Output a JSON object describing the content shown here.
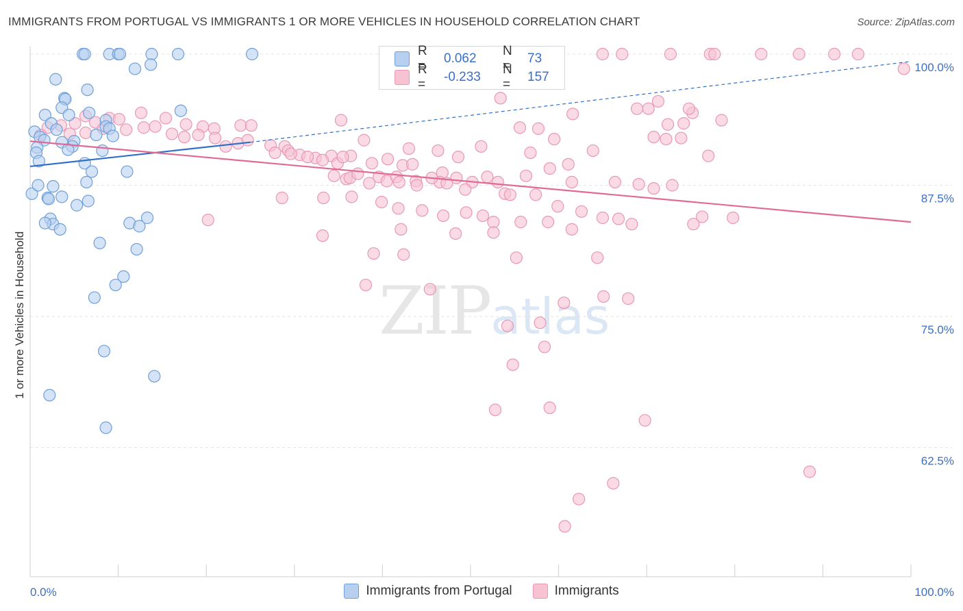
{
  "header": {
    "title": "IMMIGRANTS FROM PORTUGAL VS IMMIGRANTS 1 OR MORE VEHICLES IN HOUSEHOLD CORRELATION CHART",
    "source": "Source: ZipAtlas.com"
  },
  "watermark": {
    "zip": "ZIP",
    "atlas": "atlas"
  },
  "legend": {
    "r_label": "R =",
    "n_label": "N =",
    "rows": [
      {
        "r": "0.062",
        "n": "73"
      },
      {
        "r": "-0.233",
        "n": "157"
      }
    ]
  },
  "bottom_legend": [
    "Immigrants from Portugal",
    "Immigrants"
  ],
  "colors": {
    "blue_fill": "#b8d0f0",
    "blue_stroke": "#6f9fd8",
    "blue_line": "#2f6fc9",
    "pink_fill": "#f7c3d3",
    "pink_stroke": "#e898b3",
    "pink_line": "#e06a95",
    "axis_text_blue": "#3b6fc4",
    "grid": "#e3e3e3"
  },
  "chart_data": {
    "type": "scatter",
    "xlabel": "",
    "ylabel": "1 or more Vehicles in Household",
    "x_tick_labels": [
      "0.0%",
      "100.0%"
    ],
    "y_tick_labels": [
      "100.0%",
      "87.5%",
      "75.0%",
      "62.5%"
    ],
    "y_ticks": [
      100,
      87.5,
      75,
      62.5
    ],
    "xlim": [
      0,
      100
    ],
    "ylim": [
      50.5,
      101
    ],
    "grid": "horizontal dashed",
    "legend_position": "top-center",
    "series": [
      {
        "name": "Immigrants from Portugal",
        "r": 0.062,
        "n": 73,
        "trend": {
          "x0": 0,
          "y0": 89.3,
          "x1": 25,
          "y1": 91.6,
          "extend_to": 100,
          "extend_y": 99.3
        },
        "points": [
          [
            6,
            100
          ],
          [
            6.2,
            100
          ],
          [
            9,
            100
          ],
          [
            10,
            100
          ],
          [
            10.2,
            100
          ],
          [
            13.8,
            100
          ],
          [
            16.8,
            100
          ],
          [
            25.2,
            100
          ],
          [
            11.9,
            98.6
          ],
          [
            13.7,
            99
          ],
          [
            2.9,
            97.6
          ],
          [
            6.5,
            96.6
          ],
          [
            3.9,
            95.8
          ],
          [
            4,
            95.7
          ],
          [
            3.6,
            94.9
          ],
          [
            17.1,
            94.6
          ],
          [
            1.7,
            94.2
          ],
          [
            4.4,
            94.2
          ],
          [
            6.7,
            94.4
          ],
          [
            8.6,
            93.7
          ],
          [
            2.4,
            93.4
          ],
          [
            0.5,
            92.6
          ],
          [
            1.1,
            92.1
          ],
          [
            3,
            92.8
          ],
          [
            8.6,
            93.1
          ],
          [
            9,
            92.9
          ],
          [
            7.5,
            92.3
          ],
          [
            9.4,
            92.2
          ],
          [
            1.6,
            91.8
          ],
          [
            3.6,
            91.6
          ],
          [
            5,
            91.7
          ],
          [
            4.8,
            91.2
          ],
          [
            0.8,
            91.1
          ],
          [
            4.3,
            90.9
          ],
          [
            0.7,
            90.6
          ],
          [
            8.2,
            90.8
          ],
          [
            1,
            89.8
          ],
          [
            6.2,
            89.6
          ],
          [
            11,
            88.8
          ],
          [
            7,
            88.8
          ],
          [
            6.4,
            87.8
          ],
          [
            0.2,
            86.7
          ],
          [
            0.9,
            87.5
          ],
          [
            2.6,
            87.4
          ],
          [
            2,
            86.3
          ],
          [
            3.6,
            86.4
          ],
          [
            2.1,
            86.2
          ],
          [
            6.6,
            86
          ],
          [
            5.3,
            85.6
          ],
          [
            2.3,
            84.3
          ],
          [
            2.6,
            83.8
          ],
          [
            1.7,
            83.9
          ],
          [
            3.4,
            83.3
          ],
          [
            13.3,
            84.4
          ],
          [
            11.3,
            83.9
          ],
          [
            12.4,
            83.6
          ],
          [
            7.9,
            82
          ],
          [
            12.1,
            81.4
          ],
          [
            10.6,
            78.8
          ],
          [
            9.7,
            78
          ],
          [
            7.3,
            76.8
          ],
          [
            8.4,
            71.7
          ],
          [
            14.1,
            69.3
          ],
          [
            2.2,
            67.5
          ],
          [
            8.6,
            64.4
          ]
        ]
      },
      {
        "name": "Immigrants",
        "r": -0.233,
        "n": 157,
        "trend": {
          "x0": 0,
          "y0": 91.7,
          "x1": 100,
          "y1": 84
        },
        "points": [
          [
            65,
            100
          ],
          [
            67.2,
            100
          ],
          [
            72.7,
            100
          ],
          [
            77.2,
            100
          ],
          [
            77.7,
            100
          ],
          [
            83,
            100
          ],
          [
            87.3,
            100
          ],
          [
            91.3,
            100
          ],
          [
            94,
            100
          ],
          [
            99.2,
            98.6
          ],
          [
            53.4,
            95.8
          ],
          [
            71.3,
            95.5
          ],
          [
            61.6,
            94.3
          ],
          [
            70.2,
            94.8
          ],
          [
            68.9,
            94.8
          ],
          [
            75.2,
            94.4
          ],
          [
            74.8,
            94.8
          ],
          [
            78.5,
            93.7
          ],
          [
            74.2,
            93.4
          ],
          [
            72.4,
            93.3
          ],
          [
            55.6,
            93
          ],
          [
            57.7,
            92.9
          ],
          [
            70.8,
            92.1
          ],
          [
            73.9,
            92
          ],
          [
            59.5,
            91.9
          ],
          [
            72.2,
            91.9
          ],
          [
            63.9,
            90.8
          ],
          [
            77,
            90.3
          ],
          [
            56.8,
            90.6
          ],
          [
            59,
            89.1
          ],
          [
            61.1,
            89.5
          ],
          [
            35.3,
            93.7
          ],
          [
            37.9,
            91.8
          ],
          [
            43,
            91
          ],
          [
            46.3,
            90.8
          ],
          [
            48.6,
            90.2
          ],
          [
            51.2,
            91.2
          ],
          [
            2,
            93
          ],
          [
            3.5,
            93.2
          ],
          [
            5.1,
            93.4
          ],
          [
            6.3,
            94.1
          ],
          [
            7.4,
            93.5
          ],
          [
            9,
            93.9
          ],
          [
            10.1,
            93.8
          ],
          [
            12.6,
            94.4
          ],
          [
            15.4,
            93.9
          ],
          [
            17.7,
            93.3
          ],
          [
            19.6,
            93.1
          ],
          [
            20.9,
            92.9
          ],
          [
            23.9,
            93.2
          ],
          [
            25.1,
            93.2
          ],
          [
            1.2,
            92.3
          ],
          [
            4.5,
            92.4
          ],
          [
            6.3,
            92.5
          ],
          [
            8.3,
            92.9
          ],
          [
            10.9,
            92.8
          ],
          [
            12.9,
            93
          ],
          [
            14.2,
            93.1
          ],
          [
            16.1,
            92.4
          ],
          [
            17.5,
            92.1
          ],
          [
            19.1,
            92.3
          ],
          [
            21,
            92
          ],
          [
            22.2,
            91.2
          ],
          [
            23.6,
            91.5
          ],
          [
            24.7,
            91.8
          ],
          [
            27.3,
            91.3
          ],
          [
            28.9,
            91.2
          ],
          [
            29.3,
            90.8
          ],
          [
            30.6,
            90.4
          ],
          [
            32.4,
            90.1
          ],
          [
            34.2,
            90.3
          ],
          [
            36.4,
            90.3
          ],
          [
            38.8,
            89.6
          ],
          [
            40.6,
            90
          ],
          [
            42.3,
            89.4
          ],
          [
            43.4,
            89.5
          ],
          [
            46.8,
            88.7
          ],
          [
            27.8,
            90.6
          ],
          [
            29.6,
            90.5
          ],
          [
            31.5,
            90.2
          ],
          [
            33.2,
            89.9
          ],
          [
            34.9,
            89.6
          ],
          [
            35.5,
            90.2
          ],
          [
            34.5,
            88.4
          ],
          [
            35.9,
            88.1
          ],
          [
            36.3,
            88.2
          ],
          [
            39.6,
            88.3
          ],
          [
            40.5,
            87.9
          ],
          [
            41.6,
            88.3
          ],
          [
            43.8,
            87.9
          ],
          [
            46.5,
            87.8
          ],
          [
            48.4,
            88.2
          ],
          [
            50.2,
            87.8
          ],
          [
            51.9,
            88.3
          ],
          [
            53.1,
            87.8
          ],
          [
            56.3,
            88.4
          ],
          [
            61.5,
            87.8
          ],
          [
            66.4,
            87.8
          ],
          [
            69.1,
            87.6
          ],
          [
            70.8,
            87.2
          ],
          [
            72.9,
            87.5
          ],
          [
            37.2,
            88.6
          ],
          [
            38.5,
            87.7
          ],
          [
            41.9,
            87.8
          ],
          [
            43.9,
            87.5
          ],
          [
            45.6,
            88.2
          ],
          [
            47.3,
            87.7
          ],
          [
            49.4,
            87.1
          ],
          [
            53.9,
            86.7
          ],
          [
            54.5,
            86.6
          ],
          [
            57.4,
            86.6
          ],
          [
            59.9,
            85.5
          ],
          [
            62.6,
            85
          ],
          [
            65,
            84.4
          ],
          [
            66.8,
            84.3
          ],
          [
            68.3,
            83.8
          ],
          [
            75.3,
            83.8
          ],
          [
            76.3,
            84.5
          ],
          [
            79.8,
            84.4
          ],
          [
            28.6,
            86.3
          ],
          [
            33.3,
            86.3
          ],
          [
            36.5,
            86.4
          ],
          [
            39.9,
            85.9
          ],
          [
            41.8,
            85.3
          ],
          [
            44.5,
            85.1
          ],
          [
            46.9,
            84.6
          ],
          [
            49.5,
            84.9
          ],
          [
            51.4,
            84.6
          ],
          [
            52.6,
            84
          ],
          [
            55.7,
            84
          ],
          [
            58.8,
            84
          ],
          [
            20.2,
            84.2
          ],
          [
            33.2,
            82.7
          ],
          [
            42.1,
            83.3
          ],
          [
            48.3,
            82.9
          ],
          [
            52.6,
            83
          ],
          [
            61.5,
            83.3
          ],
          [
            39,
            81
          ],
          [
            42.4,
            80.9
          ],
          [
            55.2,
            80.6
          ],
          [
            64.4,
            80.6
          ],
          [
            38.1,
            78
          ],
          [
            45.4,
            77.6
          ],
          [
            60.6,
            76.3
          ],
          [
            65.1,
            76.9
          ],
          [
            67.9,
            76.7
          ],
          [
            54.2,
            74.1
          ],
          [
            57.9,
            74.4
          ],
          [
            58.4,
            72.1
          ],
          [
            54.8,
            70.4
          ],
          [
            52.8,
            66.1
          ],
          [
            59,
            66.3
          ],
          [
            69.8,
            65.1
          ],
          [
            88.5,
            60.2
          ],
          [
            66.2,
            59.1
          ],
          [
            62.3,
            57.6
          ],
          [
            60.7,
            55
          ]
        ]
      }
    ]
  }
}
